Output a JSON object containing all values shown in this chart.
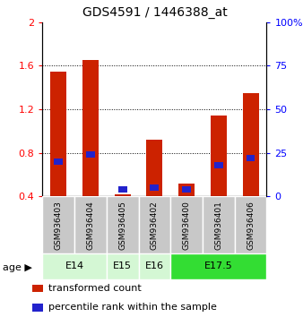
{
  "title": "GDS4591 / 1446388_at",
  "samples": [
    "GSM936403",
    "GSM936404",
    "GSM936405",
    "GSM936402",
    "GSM936400",
    "GSM936401",
    "GSM936406"
  ],
  "transformed_count": [
    1.55,
    1.65,
    0.42,
    0.92,
    0.52,
    1.14,
    1.35
  ],
  "percentile_rank_pct": [
    20,
    24,
    4,
    5,
    4,
    18,
    22
  ],
  "ylim_left": [
    0.4,
    2.0
  ],
  "ylim_right": [
    0,
    100
  ],
  "yticks_left": [
    0.4,
    0.8,
    1.2,
    1.6,
    2.0
  ],
  "yticks_right": [
    0,
    25,
    50,
    75,
    100
  ],
  "ytick_labels_left": [
    "0.4",
    "0.8",
    "1.2",
    "1.6",
    "2"
  ],
  "ytick_labels_right": [
    "0",
    "25",
    "50",
    "75",
    "100%"
  ],
  "bar_color_red": "#cc2200",
  "bar_color_blue": "#2222cc",
  "bar_width": 0.5,
  "age_groups": [
    {
      "label": "E14",
      "start": 0,
      "end": 1,
      "color": "#d4f7d4"
    },
    {
      "label": "E15",
      "start": 2,
      "end": 2,
      "color": "#d4f7d4"
    },
    {
      "label": "E16",
      "start": 3,
      "end": 3,
      "color": "#d4f7d4"
    },
    {
      "label": "E17.5",
      "start": 4,
      "end": 6,
      "color": "#33dd33"
    }
  ],
  "background_color": "#ffffff",
  "sample_bg": "#c8c8c8",
  "grid_color": "#333333"
}
